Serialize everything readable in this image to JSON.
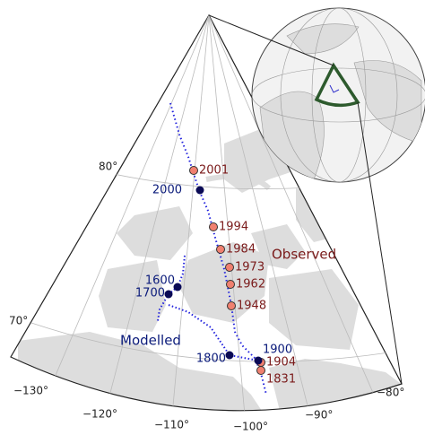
{
  "observed_label": "Observed",
  "modelled_label": "Modelled",
  "observed": [
    "2001",
    "1994",
    "1984",
    "1973",
    "1962",
    "1948",
    "1904",
    "1831"
  ],
  "modelled": [
    "2000",
    "1600",
    "1700",
    "1800",
    "1900"
  ],
  "latitude_labels": [
    "80°",
    "70°"
  ],
  "longitude_labels": [
    "−130°",
    "−120°",
    "−110°",
    "−100°",
    "−90°",
    "−80°"
  ]
}
